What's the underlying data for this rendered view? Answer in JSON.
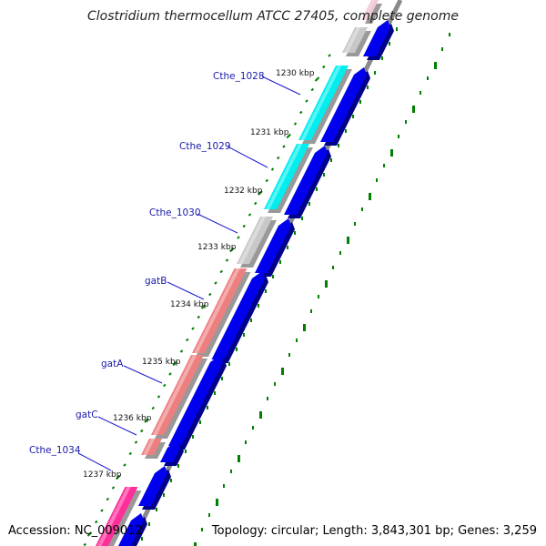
{
  "title": "Clostridium thermocellum ATCC 27405, complete genome",
  "accession": "Accession: NC_009012",
  "topology": "Topology: circular; Length: 3,843,301 bp; Genes: 3,259",
  "kbp_labels": [
    "1230 kbp",
    "1231 kbp",
    "1232 kbp",
    "1233 kbp",
    "1234 kbp",
    "1235 kbp",
    "1236 kbp",
    "1237 kbp"
  ],
  "gene_labels": [
    "Cthe_1028",
    "Cthe_1029",
    "Cthe_1030",
    "gatB",
    "gatA",
    "gatC",
    "Cthe_1034"
  ],
  "colors": {
    "cds": "#0000ee",
    "cds_side": "#000088",
    "cyan": "#00eeee",
    "grey": "#c8c8c8",
    "salmon": "#ee7f7f",
    "pink": "#ff2e9a",
    "backbone": "#8a8a8a",
    "tick": "#008000",
    "leader": "#1a1ad0"
  }
}
